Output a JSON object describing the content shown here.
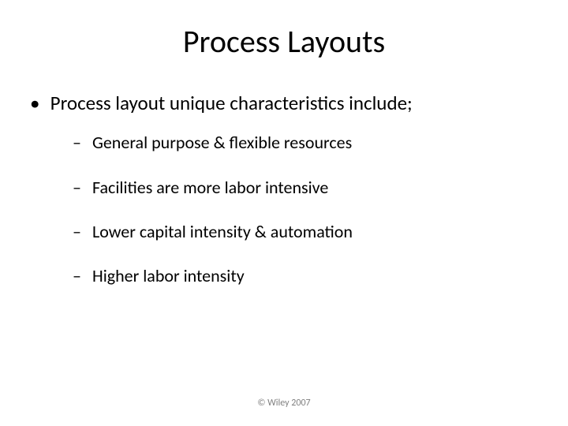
{
  "title": "Process Layouts",
  "lead": "Process layout unique characteristics include;",
  "subitems": [
    "General purpose & flexible resources",
    "Facilities are more labor intensive",
    "Lower capital intensity & automation",
    "Higher labor intensity"
  ],
  "footer": "© Wiley 2007",
  "colors": {
    "background": "#ffffff",
    "text": "#000000",
    "footer_text": "#808080"
  },
  "typography": {
    "title_fontsize_pt": 40,
    "lvl1_fontsize_pt": 25,
    "lvl2_fontsize_pt": 22,
    "footer_fontsize_pt": 12,
    "font_family": "Calibri"
  },
  "bullets": {
    "lvl1_glyph": "•",
    "lvl2_glyph": "–"
  }
}
